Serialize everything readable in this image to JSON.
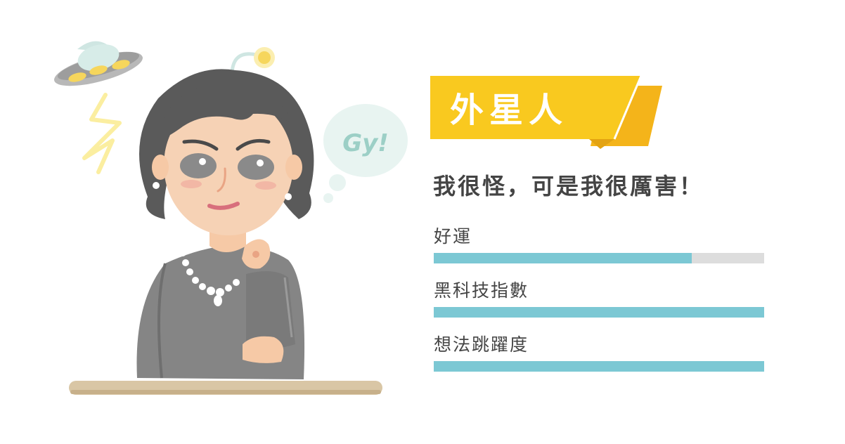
{
  "title": "外星人",
  "subtitle": "我很怪，可是我很厲害！",
  "speech_bubble": "Gy!",
  "colors": {
    "banner_yellow": "#f9c91f",
    "banner_dark_yellow": "#f4b41a",
    "bar_fill": "#7cc8d4",
    "bar_track": "#dddddd",
    "text": "#444444"
  },
  "stats": [
    {
      "label": "好運",
      "value": 0.78
    },
    {
      "label": "黑科技指數",
      "value": 1.0
    },
    {
      "label": "想法跳躍度",
      "value": 1.0
    }
  ]
}
